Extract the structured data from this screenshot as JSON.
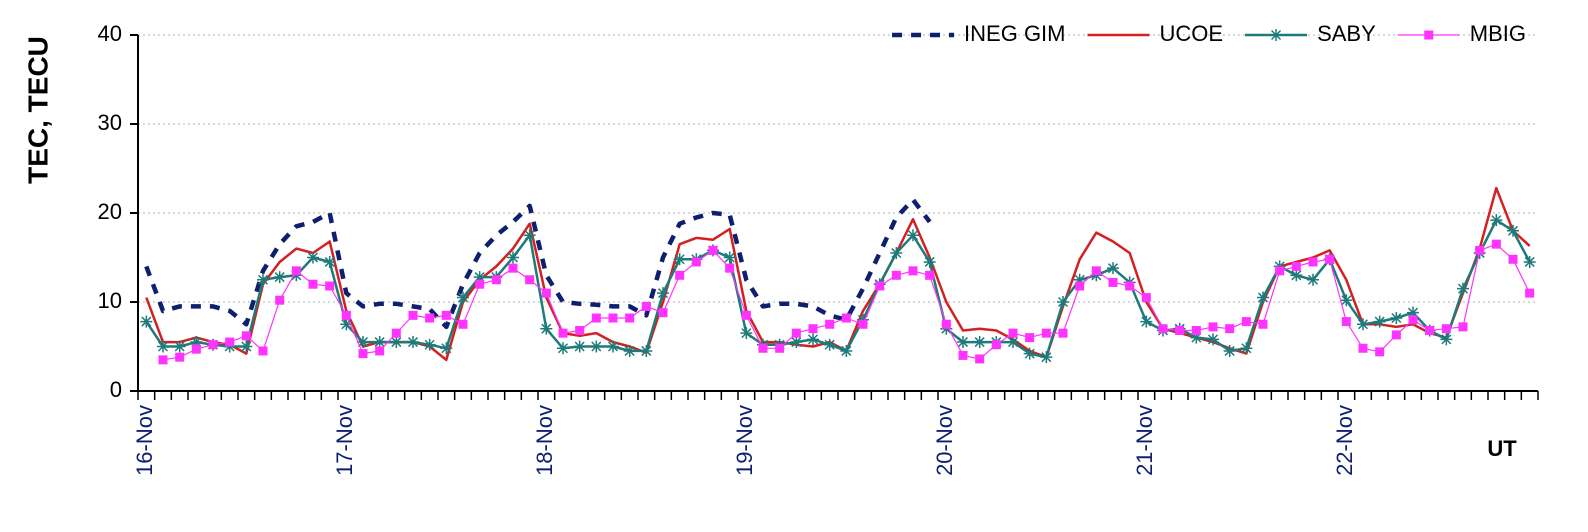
{
  "chart_data": {
    "type": "line",
    "y_label": "TEC, TECU",
    "x_label": "UT",
    "categories": [
      "16-Nov",
      null,
      null,
      null,
      null,
      null,
      null,
      null,
      null,
      null,
      null,
      null,
      "17-Nov",
      null,
      null,
      null,
      null,
      null,
      null,
      null,
      null,
      null,
      null,
      null,
      "18-Nov",
      null,
      null,
      null,
      null,
      null,
      null,
      null,
      null,
      null,
      null,
      null,
      "19-Nov",
      null,
      null,
      null,
      null,
      null,
      null,
      null,
      null,
      null,
      null,
      null,
      "20-Nov",
      null,
      null,
      null,
      null,
      null,
      null,
      null,
      null,
      null,
      null,
      null,
      "21-Nov",
      null,
      null,
      null,
      null,
      null,
      null,
      null,
      null,
      null,
      null,
      null,
      "22-Nov",
      null,
      null,
      null,
      null,
      null,
      null,
      null,
      null,
      null,
      null,
      null
    ],
    "ylim": [
      0,
      40
    ],
    "yticks": [
      0,
      10,
      20,
      30,
      40
    ],
    "grid": true,
    "legend": "upper right",
    "series": [
      {
        "name": "INEG GIM",
        "color": "#0d1f6e",
        "style": "dashed",
        "marker": null,
        "values": [
          14,
          9,
          9.5,
          9.5,
          9.5,
          9,
          7.5,
          13.5,
          16.5,
          18.5,
          19,
          20,
          11,
          9.5,
          9.8,
          9.8,
          9.5,
          9.2,
          7.2,
          12,
          15.5,
          17.5,
          19,
          20.8,
          13,
          10,
          9.8,
          9.7,
          9.5,
          9.5,
          8.5,
          15,
          18.8,
          19.5,
          20,
          19.8,
          12.5,
          9.5,
          9.8,
          9.8,
          9.5,
          8.5,
          8,
          11.5,
          15.5,
          19.5,
          21.5,
          19,
          null,
          null,
          null,
          null,
          null,
          null,
          null,
          null,
          null,
          null,
          null,
          null,
          null,
          null,
          null,
          null,
          null,
          null,
          null,
          null,
          null,
          null,
          null,
          null,
          null,
          null,
          null,
          null,
          null,
          null,
          null,
          null,
          null,
          null,
          null,
          null
        ]
      },
      {
        "name": "UCOE",
        "color": "#d42020",
        "style": "solid",
        "marker": null,
        "values": [
          10.5,
          5.5,
          5.5,
          6,
          5.5,
          5.2,
          4.2,
          12,
          14.5,
          16,
          15.5,
          16.8,
          9,
          5,
          5.5,
          5.5,
          5.5,
          5,
          3.5,
          10,
          12.5,
          14,
          16,
          18.8,
          10.5,
          6.5,
          6.2,
          6.5,
          5.5,
          5,
          4.3,
          10,
          16.5,
          17.2,
          17,
          18.2,
          9,
          5.5,
          5.5,
          5.2,
          5,
          5.5,
          4.5,
          9,
          12,
          15.5,
          19.3,
          15,
          10,
          6.8,
          7,
          6.8,
          5.8,
          4.5,
          3.8,
          9.5,
          14.8,
          17.8,
          16.8,
          15.5,
          10,
          7,
          6.5,
          6,
          5.5,
          4.8,
          4.2,
          10,
          14,
          14.5,
          15,
          15.8,
          12.5,
          7.5,
          7.5,
          7.2,
          7.5,
          6.5,
          6,
          11,
          16,
          22.8,
          18,
          16.3
        ]
      },
      {
        "name": "SABY",
        "color": "#1f7a7a",
        "style": "solid",
        "marker": "asterisk",
        "values": [
          7.8,
          5,
          5,
          5.5,
          5.2,
          5,
          5,
          12.5,
          12.8,
          13,
          15,
          14.5,
          7.5,
          5.5,
          5.5,
          5.5,
          5.5,
          5.2,
          4.8,
          10.5,
          12.8,
          12.8,
          15,
          17.5,
          7,
          4.8,
          5,
          5,
          5,
          4.5,
          4.5,
          11,
          14.8,
          14.8,
          15.8,
          15,
          6.5,
          5.2,
          5.2,
          5.5,
          5.8,
          5.2,
          4.5,
          8,
          12,
          15.5,
          17.5,
          14.5,
          7,
          5.5,
          5.5,
          5.5,
          5.5,
          4.2,
          3.8,
          10,
          12.5,
          13,
          13.8,
          12.2,
          7.8,
          6.8,
          7,
          6,
          5.8,
          4.5,
          4.8,
          10.5,
          14,
          13,
          12.5,
          14.8,
          10.2,
          7.5,
          7.8,
          8.2,
          8.8,
          6.8,
          5.8,
          11.5,
          15.5,
          19.2,
          18,
          14.5
        ]
      },
      {
        "name": "MBIG",
        "color": "#ff33ff",
        "style": "solid",
        "marker": "square",
        "values": [
          null,
          3.5,
          3.8,
          4.7,
          5.2,
          5.5,
          6.2,
          4.5,
          10.2,
          13.5,
          12,
          11.8,
          8.5,
          4.2,
          4.5,
          6.5,
          8.5,
          8.2,
          8.5,
          7.5,
          12,
          12.5,
          13.8,
          12.5,
          11,
          6.5,
          6.8,
          8.2,
          8.2,
          8.2,
          9.5,
          8.8,
          13,
          14.5,
          15.8,
          13.8,
          8.5,
          4.8,
          4.8,
          6.5,
          7,
          7.5,
          8.2,
          7.5,
          11.8,
          13,
          13.5,
          13,
          7.5,
          4,
          3.6,
          5.2,
          6.5,
          6,
          6.5,
          6.5,
          11.8,
          13.5,
          12.2,
          11.8,
          10.5,
          7,
          6.8,
          6.8,
          7.2,
          7,
          7.8,
          7.5,
          13.5,
          14,
          14.5,
          14.8,
          7.8,
          4.8,
          4.4,
          6.3,
          8,
          6.8,
          7,
          7.2,
          15.8,
          16.5,
          14.8,
          11
        ]
      }
    ]
  }
}
